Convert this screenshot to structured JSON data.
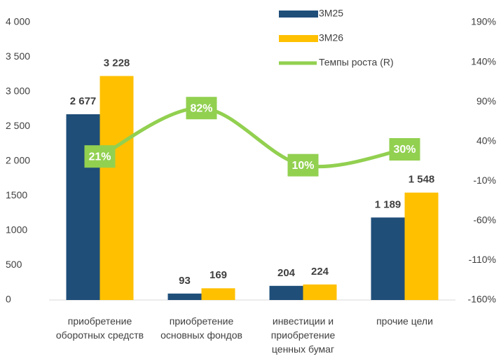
{
  "chart_data": {
    "type": "bar",
    "categories": [
      "приобретение\nоборотных средств",
      "приобретение\nосновных фондов",
      "инвестиции и\nприобретение\nценных бумаг",
      "прочие цели"
    ],
    "series": [
      {
        "name": "3М25",
        "color": "#1f4e79",
        "values": [
          2677,
          93,
          204,
          1189
        ],
        "value_labels": [
          "2 677",
          "93",
          "204",
          "1 189"
        ]
      },
      {
        "name": "3М26",
        "color": "#ffc000",
        "values": [
          3228,
          169,
          224,
          1548
        ],
        "value_labels": [
          "3 228",
          "169",
          "224",
          "1 548"
        ]
      },
      {
        "name": "Темпы роста (R)",
        "type": "line",
        "axis": "y2",
        "color": "#92d050",
        "values": [
          21,
          82,
          10,
          30
        ],
        "value_labels": [
          "21%",
          "82%",
          "10%",
          "30%"
        ]
      }
    ],
    "ylim": [
      0,
      4000
    ],
    "yticks": [
      0,
      500,
      1000,
      1500,
      {
        "value": 2000,
        "label": "2 000"
      },
      {
        "value": 2500,
        "label": "2 500"
      },
      {
        "value": 3000,
        "label": "3 000"
      },
      {
        "value": 3500,
        "label": "3 500"
      },
      {
        "value": 4000,
        "label": "4 000"
      }
    ],
    "y2lim": [
      -160,
      190
    ],
    "y2ticks": [
      {
        "value": -160,
        "label": "-160%"
      },
      {
        "value": -110,
        "label": "-110%"
      },
      {
        "value": -60,
        "label": "-60%"
      },
      {
        "value": -10,
        "label": "-10%"
      },
      {
        "value": 40,
        "label": "40%"
      },
      {
        "value": 90,
        "label": "90%"
      },
      {
        "value": 140,
        "label": "140%"
      },
      {
        "value": 190,
        "label": "190%"
      }
    ],
    "legend": "top"
  }
}
